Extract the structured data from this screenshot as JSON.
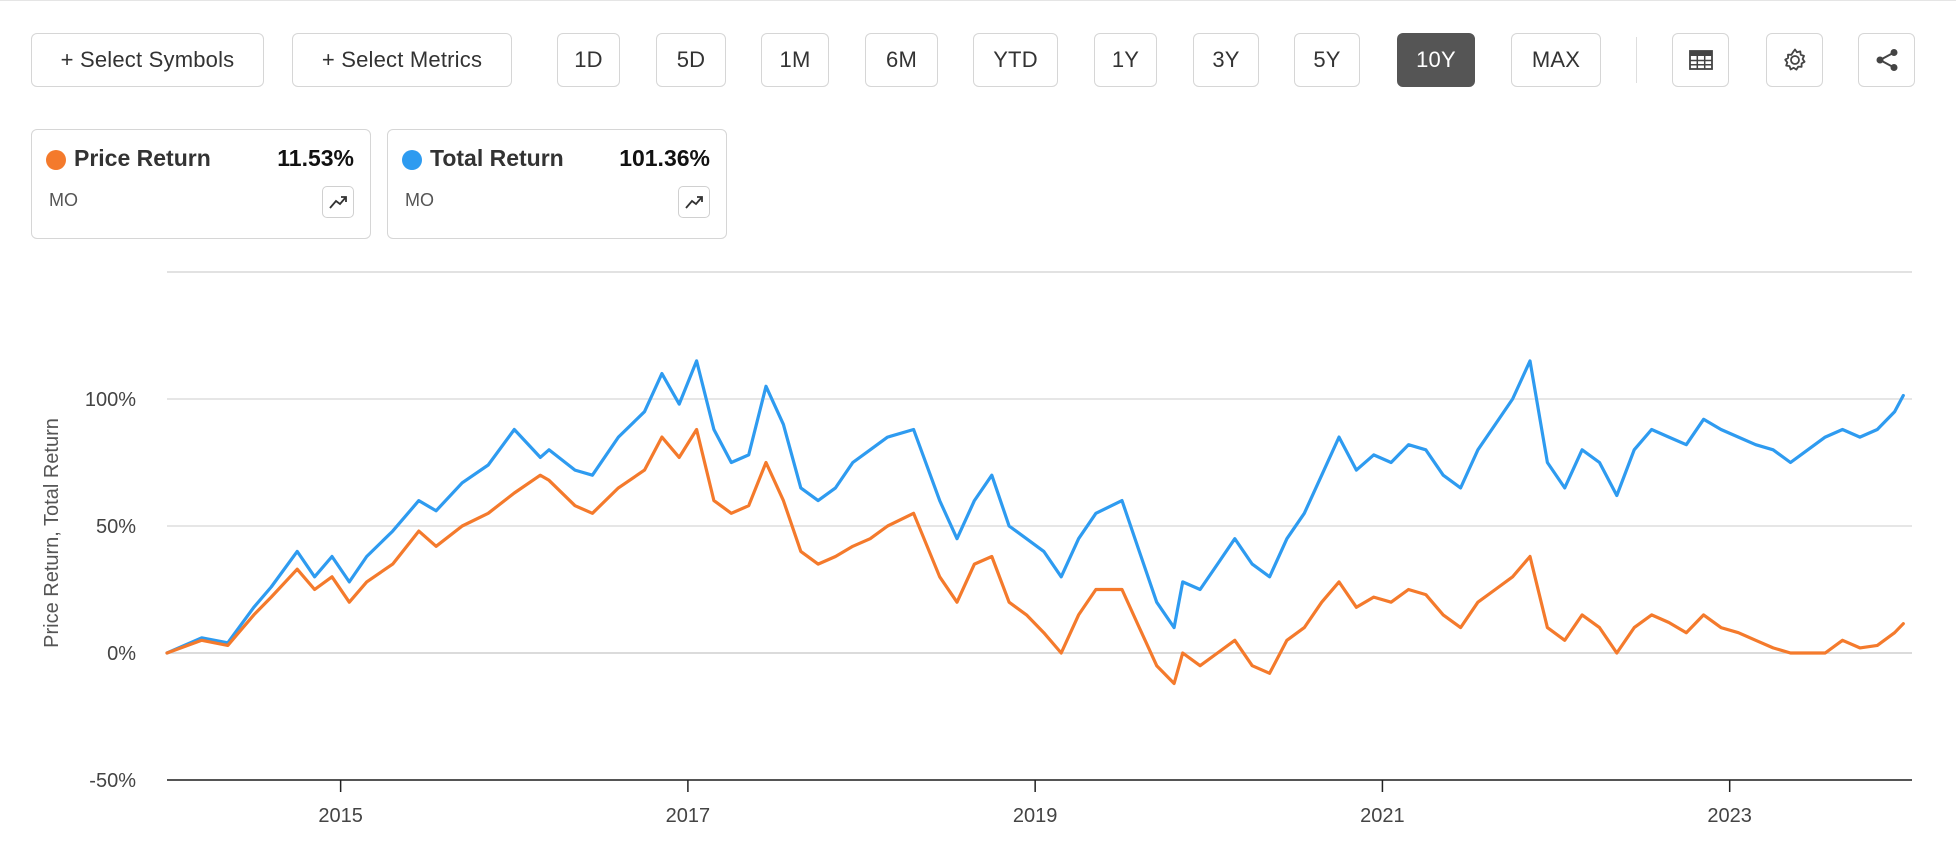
{
  "toolbar": {
    "select_symbols": "+ Select Symbols",
    "select_metrics": "+ Select Metrics",
    "periods": [
      "1D",
      "5D",
      "1M",
      "6M",
      "YTD",
      "1Y",
      "3Y",
      "5Y",
      "10Y",
      "MAX"
    ],
    "active_period": "10Y",
    "icons": [
      "table-icon",
      "gear-icon",
      "share-icon"
    ]
  },
  "legend": [
    {
      "name": "Price Return",
      "value": "11.53%",
      "symbol": "MO",
      "color": "#f47a2c",
      "icon": "trend-up-icon"
    },
    {
      "name": "Total Return",
      "value": "101.36%",
      "symbol": "MO",
      "color": "#2e9bf0",
      "icon": "trend-up-icon"
    }
  ],
  "chart_data": {
    "type": "line",
    "ylabel": "Price Return, Total Return",
    "xlabel": "",
    "y_ticks": [
      "100%",
      "50%",
      "0%",
      "-50%"
    ],
    "y_tick_values": [
      100,
      50,
      0,
      -50
    ],
    "ylim": [
      -50,
      150
    ],
    "x_ticks": [
      "2015",
      "2017",
      "2019",
      "2021",
      "2023"
    ],
    "x_tick_values": [
      2015.0,
      2017.0,
      2019.0,
      2021.0,
      2023.0
    ],
    "xlim": [
      2014.0,
      2024.05
    ],
    "grid": true,
    "series": [
      {
        "name": "Price Return",
        "color": "#f47a2c",
        "x": [
          2014.0,
          2014.2,
          2014.35,
          2014.5,
          2014.6,
          2014.75,
          2014.85,
          2014.95,
          2015.05,
          2015.15,
          2015.3,
          2015.45,
          2015.55,
          2015.7,
          2015.85,
          2016.0,
          2016.15,
          2016.2,
          2016.35,
          2016.45,
          2016.6,
          2016.75,
          2016.85,
          2016.95,
          2017.05,
          2017.15,
          2017.25,
          2017.35,
          2017.45,
          2017.55,
          2017.65,
          2017.75,
          2017.85,
          2017.95,
          2018.05,
          2018.15,
          2018.3,
          2018.45,
          2018.55,
          2018.65,
          2018.75,
          2018.85,
          2018.95,
          2019.05,
          2019.15,
          2019.25,
          2019.35,
          2019.5,
          2019.6,
          2019.7,
          2019.8,
          2019.85,
          2019.95,
          2020.05,
          2020.15,
          2020.25,
          2020.35,
          2020.45,
          2020.55,
          2020.65,
          2020.75,
          2020.85,
          2020.95,
          2021.05,
          2021.15,
          2021.25,
          2021.35,
          2021.45,
          2021.55,
          2021.65,
          2021.75,
          2021.85,
          2021.95,
          2022.05,
          2022.15,
          2022.25,
          2022.35,
          2022.45,
          2022.55,
          2022.65,
          2022.75,
          2022.85,
          2022.95,
          2023.05,
          2023.15,
          2023.25,
          2023.35,
          2023.45,
          2023.55,
          2023.65,
          2023.75,
          2023.85,
          2023.95,
          2024.0
        ],
        "y": [
          0,
          5,
          3,
          15,
          22,
          33,
          25,
          30,
          20,
          28,
          35,
          48,
          42,
          50,
          55,
          63,
          70,
          68,
          58,
          55,
          65,
          72,
          85,
          77,
          88,
          60,
          55,
          58,
          75,
          60,
          40,
          35,
          38,
          42,
          45,
          50,
          55,
          30,
          20,
          35,
          38,
          20,
          15,
          8,
          0,
          15,
          25,
          25,
          10,
          -5,
          -12,
          0,
          -5,
          0,
          5,
          -5,
          -8,
          5,
          10,
          20,
          28,
          18,
          22,
          20,
          25,
          23,
          15,
          10,
          20,
          25,
          30,
          38,
          10,
          5,
          15,
          10,
          0,
          10,
          15,
          12,
          8,
          15,
          10,
          8,
          5,
          2,
          0,
          0,
          0,
          5,
          2,
          3,
          8,
          11.53
        ]
      },
      {
        "name": "Total Return",
        "color": "#2e9bf0",
        "x": [
          2014.0,
          2014.2,
          2014.35,
          2014.5,
          2014.6,
          2014.75,
          2014.85,
          2014.95,
          2015.05,
          2015.15,
          2015.3,
          2015.45,
          2015.55,
          2015.7,
          2015.85,
          2016.0,
          2016.15,
          2016.2,
          2016.35,
          2016.45,
          2016.6,
          2016.75,
          2016.85,
          2016.95,
          2017.05,
          2017.15,
          2017.25,
          2017.35,
          2017.45,
          2017.55,
          2017.65,
          2017.75,
          2017.85,
          2017.95,
          2018.05,
          2018.15,
          2018.3,
          2018.45,
          2018.55,
          2018.65,
          2018.75,
          2018.85,
          2018.95,
          2019.05,
          2019.15,
          2019.25,
          2019.35,
          2019.5,
          2019.6,
          2019.7,
          2019.8,
          2019.85,
          2019.95,
          2020.05,
          2020.15,
          2020.25,
          2020.35,
          2020.45,
          2020.55,
          2020.65,
          2020.75,
          2020.85,
          2020.95,
          2021.05,
          2021.15,
          2021.25,
          2021.35,
          2021.45,
          2021.55,
          2021.65,
          2021.75,
          2021.85,
          2021.95,
          2022.05,
          2022.15,
          2022.25,
          2022.35,
          2022.45,
          2022.55,
          2022.65,
          2022.75,
          2022.85,
          2022.95,
          2023.05,
          2023.15,
          2023.25,
          2023.35,
          2023.45,
          2023.55,
          2023.65,
          2023.75,
          2023.85,
          2023.95,
          2024.0
        ],
        "y": [
          0,
          6,
          4,
          18,
          26,
          40,
          30,
          38,
          28,
          38,
          48,
          60,
          56,
          67,
          74,
          88,
          77,
          80,
          72,
          70,
          85,
          95,
          110,
          98,
          115,
          88,
          75,
          78,
          105,
          90,
          65,
          60,
          65,
          75,
          80,
          85,
          88,
          60,
          45,
          60,
          70,
          50,
          45,
          40,
          30,
          45,
          55,
          60,
          40,
          20,
          10,
          28,
          25,
          35,
          45,
          35,
          30,
          45,
          55,
          70,
          85,
          72,
          78,
          75,
          82,
          80,
          70,
          65,
          80,
          90,
          100,
          115,
          75,
          65,
          80,
          75,
          62,
          80,
          88,
          85,
          82,
          92,
          88,
          85,
          82,
          80,
          75,
          80,
          85,
          88,
          85,
          88,
          95,
          101.36
        ]
      }
    ]
  }
}
